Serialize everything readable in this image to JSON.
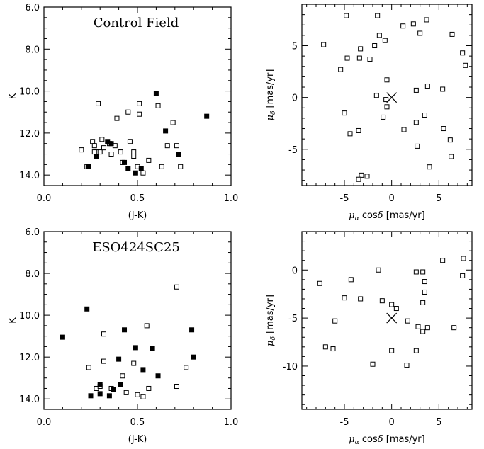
{
  "chart_data": [
    {
      "id": "cmd-control",
      "type": "scatter",
      "title": "Control Field",
      "xlabel": "(J-K)",
      "ylabel": "K",
      "xlim": [
        0.0,
        1.0
      ],
      "ylim": [
        6.0,
        14.5
      ],
      "y_inverted": true,
      "xticks": [
        "0.0",
        "0.5",
        "1.0"
      ],
      "yticks": [
        "6.0",
        "8.0",
        "10.0",
        "12.0",
        "14.0"
      ],
      "xtick_values": [
        0.0,
        0.5,
        1.0
      ],
      "ytick_values": [
        6.0,
        8.0,
        10.0,
        12.0,
        14.0
      ],
      "series": [
        {
          "marker": "open-square",
          "points": [
            [
              0.29,
              10.6
            ],
            [
              0.2,
              12.8
            ],
            [
              0.23,
              13.6
            ],
            [
              0.26,
              12.4
            ],
            [
              0.27,
              12.6
            ],
            [
              0.28,
              12.9
            ],
            [
              0.3,
              12.9
            ],
            [
              0.31,
              12.3
            ],
            [
              0.32,
              12.7
            ],
            [
              0.35,
              12.5
            ],
            [
              0.36,
              13.0
            ],
            [
              0.38,
              12.6
            ],
            [
              0.39,
              11.3
            ],
            [
              0.41,
              12.9
            ],
            [
              0.42,
              13.4
            ],
            [
              0.45,
              11.0
            ],
            [
              0.46,
              12.4
            ],
            [
              0.48,
              12.9
            ],
            [
              0.5,
              13.6
            ],
            [
              0.51,
              10.6
            ],
            [
              0.51,
              11.1
            ],
            [
              0.53,
              13.9
            ],
            [
              0.56,
              13.3
            ],
            [
              0.61,
              10.7
            ],
            [
              0.63,
              13.6
            ],
            [
              0.66,
              12.6
            ],
            [
              0.69,
              11.5
            ],
            [
              0.71,
              12.6
            ],
            [
              0.73,
              13.6
            ],
            [
              0.48,
              13.1
            ],
            [
              0.27,
              12.9
            ]
          ]
        },
        {
          "marker": "filled-square",
          "points": [
            [
              0.6,
              10.1
            ],
            [
              0.87,
              11.2
            ],
            [
              0.65,
              11.9
            ],
            [
              0.34,
              12.4
            ],
            [
              0.36,
              12.5
            ],
            [
              0.28,
              13.1
            ],
            [
              0.24,
              13.6
            ],
            [
              0.43,
              13.4
            ],
            [
              0.45,
              13.7
            ],
            [
              0.49,
              13.9
            ],
            [
              0.52,
              13.7
            ],
            [
              0.72,
              13.0
            ]
          ]
        }
      ]
    },
    {
      "id": "pm-control",
      "type": "scatter",
      "title": "",
      "xlabel": "μα cosδ  [mas/yr]",
      "ylabel": "μδ [mas/yr]",
      "xlim": [
        -9.5,
        8.5
      ],
      "ylim": [
        -8.5,
        9.0
      ],
      "xticks": [
        "-5",
        "0",
        "5"
      ],
      "yticks": [
        "-5",
        "0",
        "5"
      ],
      "xtick_values": [
        -5,
        0,
        5
      ],
      "ytick_values": [
        -5,
        0,
        5
      ],
      "cross_marker": [
        0.0,
        0.0
      ],
      "series": [
        {
          "marker": "open-square",
          "points": [
            [
              -4.8,
              7.9
            ],
            [
              -1.5,
              7.9
            ],
            [
              3.7,
              7.5
            ],
            [
              1.2,
              6.9
            ],
            [
              2.3,
              7.1
            ],
            [
              -1.3,
              6.0
            ],
            [
              3.0,
              6.2
            ],
            [
              6.4,
              6.1
            ],
            [
              -7.2,
              5.1
            ],
            [
              -1.8,
              5.0
            ],
            [
              -0.7,
              5.5
            ],
            [
              -3.3,
              4.7
            ],
            [
              -4.7,
              3.8
            ],
            [
              -3.4,
              3.8
            ],
            [
              -2.3,
              3.7
            ],
            [
              -5.4,
              2.7
            ],
            [
              7.5,
              4.3
            ],
            [
              7.8,
              3.1
            ],
            [
              -0.5,
              1.7
            ],
            [
              3.8,
              1.1
            ],
            [
              2.6,
              0.7
            ],
            [
              5.4,
              0.8
            ],
            [
              -1.6,
              0.2
            ],
            [
              -0.6,
              -0.2
            ],
            [
              -0.5,
              -0.9
            ],
            [
              -0.9,
              -1.9
            ],
            [
              -5.0,
              -1.5
            ],
            [
              3.5,
              -1.7
            ],
            [
              2.6,
              -2.4
            ],
            [
              -4.4,
              -3.5
            ],
            [
              -3.5,
              -3.2
            ],
            [
              1.3,
              -3.1
            ],
            [
              5.5,
              -3.0
            ],
            [
              6.2,
              -4.1
            ],
            [
              2.7,
              -4.7
            ],
            [
              6.3,
              -5.7
            ],
            [
              4.0,
              -6.7
            ],
            [
              -3.2,
              -7.5
            ],
            [
              -2.6,
              -7.6
            ],
            [
              -3.5,
              -7.9
            ]
          ]
        }
      ]
    },
    {
      "id": "cmd-cluster",
      "type": "scatter",
      "title": "ESO424SC25",
      "xlabel": "(J-K)",
      "ylabel": "K",
      "xlim": [
        0.0,
        1.0
      ],
      "ylim": [
        6.0,
        14.5
      ],
      "y_inverted": true,
      "xticks": [
        "0.0",
        "0.5",
        "1.0"
      ],
      "yticks": [
        "6.0",
        "8.0",
        "10.0",
        "12.0",
        "14.0"
      ],
      "xtick_values": [
        0.0,
        0.5,
        1.0
      ],
      "ytick_values": [
        6.0,
        8.0,
        10.0,
        12.0,
        14.0
      ],
      "series": [
        {
          "marker": "open-square",
          "points": [
            [
              0.71,
              8.65
            ],
            [
              0.55,
              10.5
            ],
            [
              0.32,
              10.9
            ],
            [
              0.24,
              12.5
            ],
            [
              0.32,
              12.2
            ],
            [
              0.42,
              12.9
            ],
            [
              0.48,
              12.3
            ],
            [
              0.28,
              13.5
            ],
            [
              0.3,
              13.4
            ],
            [
              0.36,
              13.5
            ],
            [
              0.44,
              13.7
            ],
            [
              0.5,
              13.8
            ],
            [
              0.53,
              13.9
            ],
            [
              0.56,
              13.5
            ],
            [
              0.76,
              12.5
            ],
            [
              0.71,
              13.4
            ]
          ]
        },
        {
          "marker": "filled-square",
          "points": [
            [
              0.23,
              9.7
            ],
            [
              0.1,
              11.05
            ],
            [
              0.43,
              10.7
            ],
            [
              0.79,
              10.7
            ],
            [
              0.49,
              11.55
            ],
            [
              0.58,
              11.6
            ],
            [
              0.4,
              12.1
            ],
            [
              0.8,
              12.0
            ],
            [
              0.53,
              12.6
            ],
            [
              0.61,
              12.9
            ],
            [
              0.25,
              13.85
            ],
            [
              0.3,
              13.3
            ],
            [
              0.3,
              13.75
            ],
            [
              0.35,
              13.85
            ],
            [
              0.37,
              13.55
            ],
            [
              0.41,
              13.3
            ]
          ]
        }
      ]
    },
    {
      "id": "pm-cluster",
      "type": "scatter",
      "title": "",
      "xlabel": "μα cosδ  [mas/yr]",
      "ylabel": "μδ [mas/yr]",
      "xlim": [
        -9.5,
        8.5
      ],
      "ylim": [
        -14.5,
        4.0
      ],
      "xticks": [
        "-5",
        "0",
        "5"
      ],
      "yticks": [
        "-10",
        "-5",
        "0"
      ],
      "xtick_values": [
        -5,
        0,
        5
      ],
      "ytick_values": [
        -10,
        -5,
        0
      ],
      "cross_marker": [
        0.0,
        -5.0
      ],
      "series": [
        {
          "marker": "open-square",
          "points": [
            [
              -7.6,
              -1.4
            ],
            [
              -4.3,
              -1.0
            ],
            [
              -1.4,
              0.0
            ],
            [
              2.6,
              -0.2
            ],
            [
              3.3,
              -0.2
            ],
            [
              5.4,
              1.0
            ],
            [
              7.6,
              1.2
            ],
            [
              7.5,
              -0.6
            ],
            [
              3.5,
              -1.2
            ],
            [
              3.5,
              -2.3
            ],
            [
              3.3,
              -3.4
            ],
            [
              -5.0,
              -2.9
            ],
            [
              -3.3,
              -3.0
            ],
            [
              -1.0,
              -3.2
            ],
            [
              0.0,
              -3.6
            ],
            [
              0.5,
              -4.0
            ],
            [
              -6.0,
              -5.3
            ],
            [
              1.7,
              -5.3
            ],
            [
              2.8,
              -5.9
            ],
            [
              3.8,
              -6.0
            ],
            [
              6.6,
              -6.0
            ],
            [
              3.3,
              -6.4
            ],
            [
              -7.0,
              -8.0
            ],
            [
              -6.2,
              -8.2
            ],
            [
              0.0,
              -8.4
            ],
            [
              2.6,
              -8.4
            ],
            [
              -2.0,
              -9.8
            ],
            [
              1.6,
              -9.9
            ]
          ]
        }
      ]
    }
  ]
}
